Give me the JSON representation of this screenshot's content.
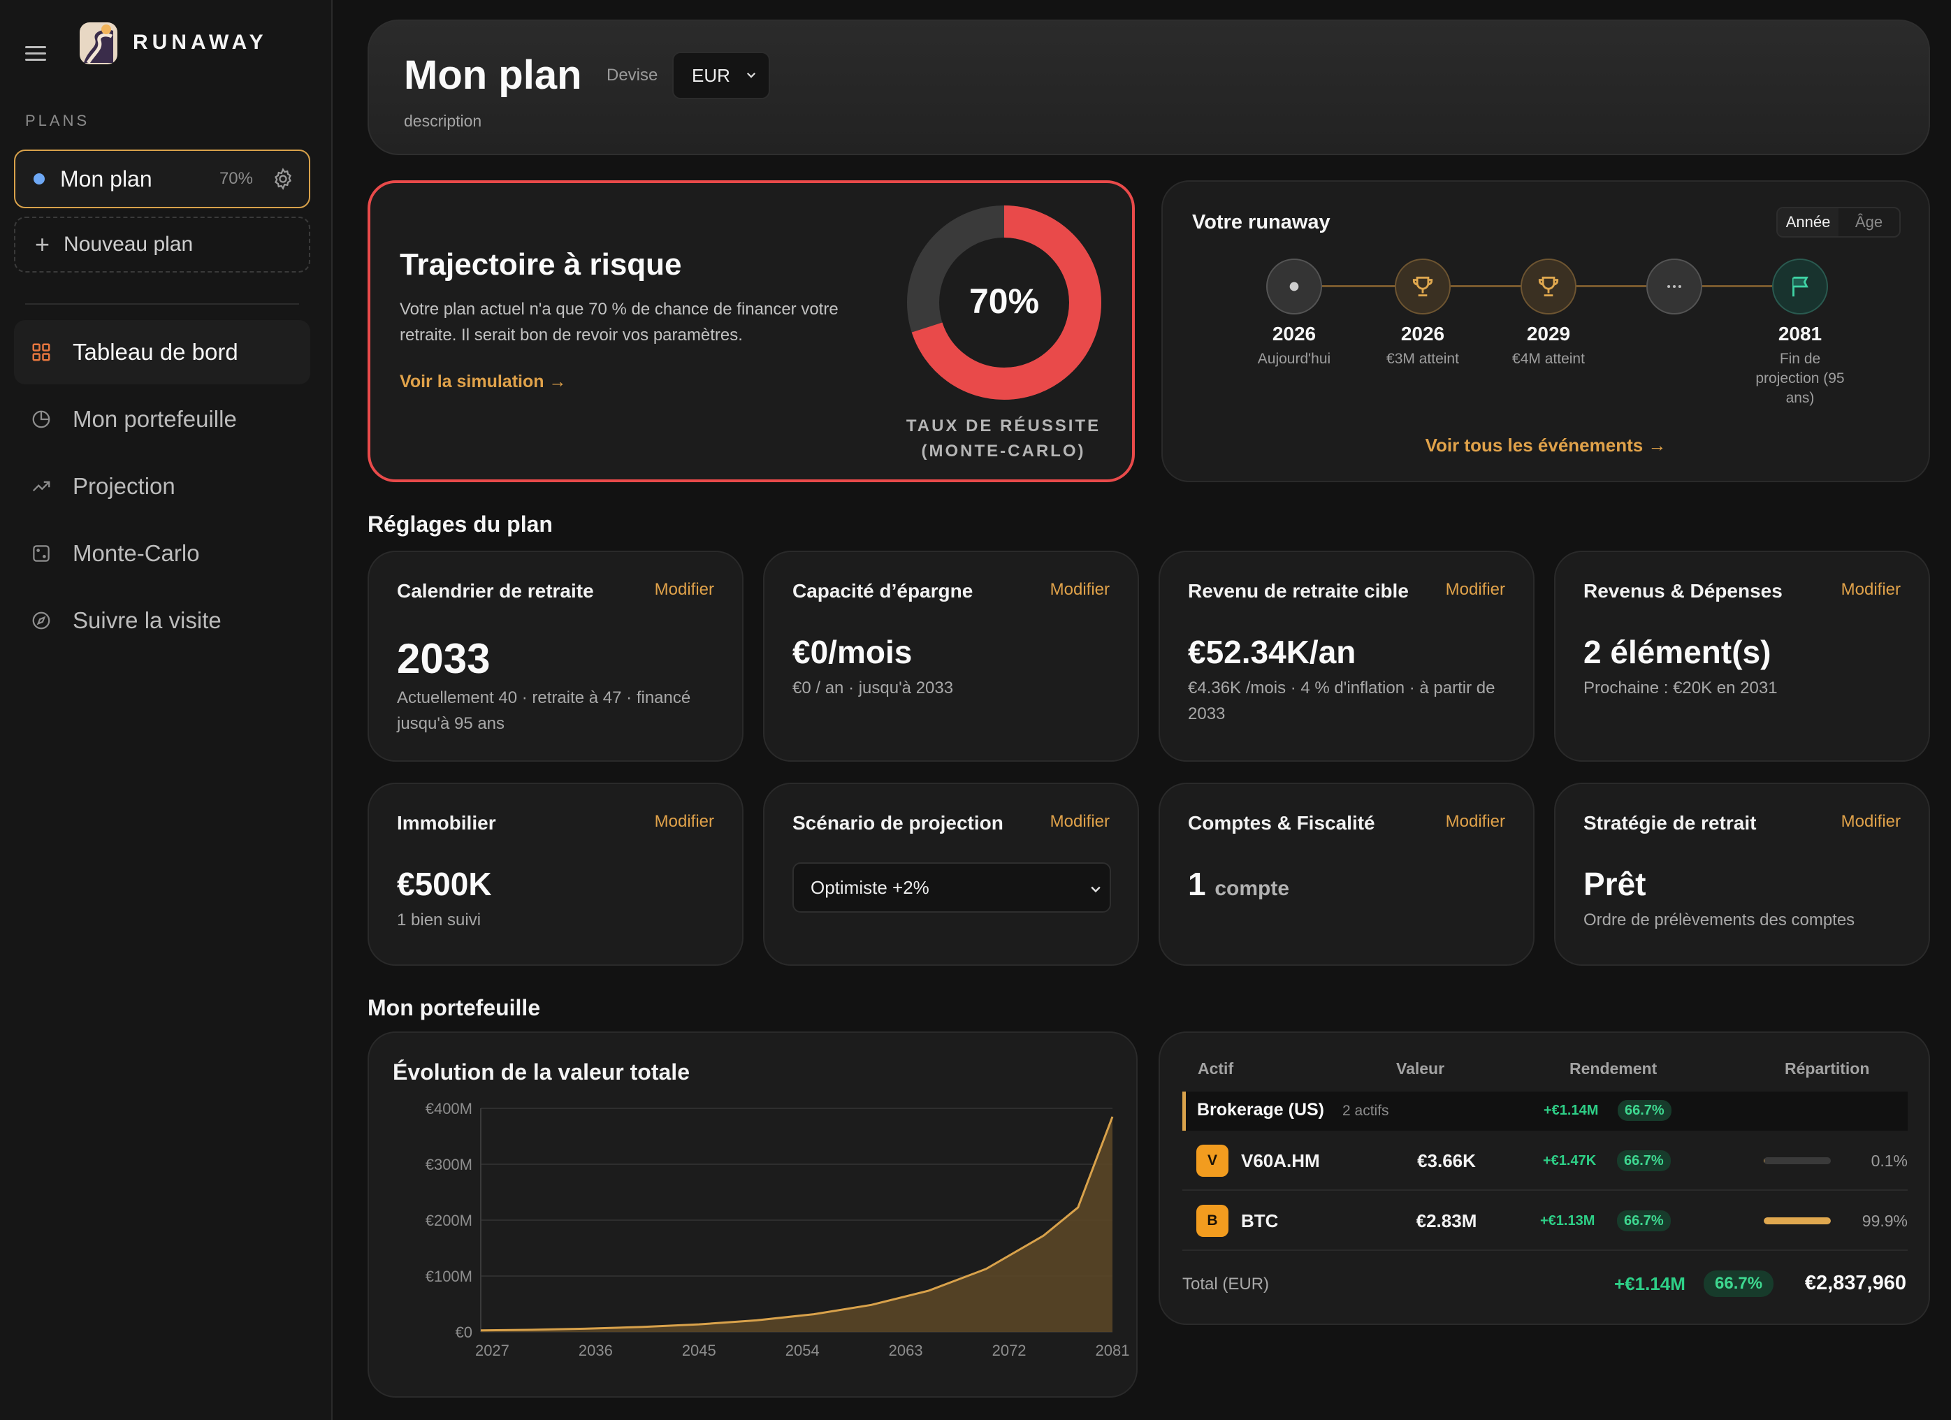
{
  "app": {
    "brand": "RUNAWAY"
  },
  "sidebar": {
    "plans_label": "PLANS",
    "plan": {
      "name": "Mon plan",
      "percent": "70%"
    },
    "new_plan_label": "Nouveau plan",
    "nav": [
      {
        "label": "Tableau de bord",
        "icon": "dashboard-grid-icon"
      },
      {
        "label": "Mon portefeuille",
        "icon": "pie-chart-icon"
      },
      {
        "label": "Projection",
        "icon": "trending-up-icon"
      },
      {
        "label": "Monte-Carlo",
        "icon": "dice-icon"
      },
      {
        "label": "Suivre la visite",
        "icon": "compass-icon"
      }
    ]
  },
  "header": {
    "title": "Mon plan",
    "currency_label": "Devise",
    "currency_value": "EUR",
    "description": "description"
  },
  "risk": {
    "title": "Trajectoire à risque",
    "text": "Votre plan actuel n'a que 70 % de chance de financer votre retraite. Il serait bon de revoir vos paramètres.",
    "link": "Voir la simulation →",
    "success_rate": 0.7,
    "success_rate_label": "70%",
    "gauge_label": "TAUX DE RÉUSSITE (MONTE-CARLO)",
    "colors": {
      "accent": "#e94a4a",
      "track": "#3a3a3a"
    }
  },
  "runway": {
    "title": "Votre runaway",
    "toggle": [
      "Année",
      "Âge"
    ],
    "active_toggle": "Année",
    "events": [
      {
        "year": "2026",
        "label": "Aujourd'hui",
        "icon": "dot-icon"
      },
      {
        "year": "2026",
        "label": "€3M atteint",
        "icon": "trophy-icon"
      },
      {
        "year": "2029",
        "label": "€4M atteint",
        "icon": "trophy-icon"
      },
      {
        "year": "",
        "label": "",
        "icon": "ellipsis-icon"
      },
      {
        "year": "2081",
        "label": "Fin de projection (95 ans)",
        "icon": "flag-icon"
      }
    ],
    "link": "Voir tous les événements →"
  },
  "settings": {
    "section_title": "Réglages du plan",
    "modify_label": "Modifier",
    "cards": [
      {
        "title": "Calendrier de retraite",
        "value": "2033",
        "sub": "Actuellement 40 · retraite à 47 · financé jusqu'à 95 ans"
      },
      {
        "title": "Capacité d’épargne",
        "value": "€0/mois",
        "sub": "€0 / an · jusqu'à 2033"
      },
      {
        "title": "Revenu de retraite cible",
        "value": "€52.34K/an",
        "sub": "€4.36K /mois · 4 % d'inflation · à partir de 2033"
      },
      {
        "title": "Revenus & Dépenses",
        "value": "2 élément(s)",
        "sub": "Prochaine : €20K en 2031"
      },
      {
        "title": "Immobilier",
        "value": "€500K",
        "sub": "1 bien suivi"
      },
      {
        "title": "Scénario de projection",
        "value": "Optimiste +2%",
        "sub": ""
      },
      {
        "title": "Comptes & Fiscalité",
        "value": "1",
        "unit": "compte",
        "sub": ""
      },
      {
        "title": "Stratégie de retrait",
        "value": "Prêt",
        "sub": "Ordre de prélèvements des comptes"
      }
    ]
  },
  "portfolio": {
    "section_title": "Mon portefeuille",
    "chart_title": "Évolution de la valeur totale",
    "table": {
      "headers": [
        "Actif",
        "Valeur",
        "Rendement",
        "Répartition"
      ],
      "group": {
        "name": "Brokerage (US)",
        "count": "2 actifs",
        "gain": "+€1.14M",
        "pct": "66.7%"
      },
      "rows": [
        {
          "badge": "V",
          "name": "V60A.HM",
          "value": "€3.66K",
          "gain": "+€1.47K",
          "pct": "66.7%",
          "alloc": 0.001,
          "alloc_label": "0.1%"
        },
        {
          "badge": "B",
          "name": "BTC",
          "value": "€2.83M",
          "gain": "+€1.13M",
          "pct": "66.7%",
          "alloc": 0.999,
          "alloc_label": "99.9%"
        }
      ],
      "total_label": "Total (EUR)",
      "total_gain": "+€1.14M",
      "total_pct": "66.7%",
      "total_value": "€2,837,960"
    }
  },
  "chart_data": {
    "type": "area",
    "title": "Évolution de la valeur totale",
    "xlabel": "",
    "ylabel": "",
    "ylim": [
      0,
      400
    ],
    "xlim": [
      2026,
      2081
    ],
    "yticks": [
      0,
      100,
      200,
      300,
      400
    ],
    "ytick_labels": [
      "€0",
      "€100M",
      "€200M",
      "€300M",
      "€400M"
    ],
    "xticks": [
      2027,
      2036,
      2045,
      2054,
      2063,
      2072,
      2081
    ],
    "x": [
      2026,
      2030,
      2035,
      2040,
      2045,
      2050,
      2055,
      2060,
      2065,
      2070,
      2075,
      2078,
      2081
    ],
    "series": [
      {
        "values": [
          2.8,
          3.8,
          5.8,
          8.9,
          13.6,
          20.8,
          31.7,
          48.4,
          73.9,
          112.8,
          172.2,
          222.7,
          385
        ]
      }
    ],
    "grid": true,
    "colors": {
      "line": "#d9a24b",
      "fill": "#5a4627"
    }
  }
}
